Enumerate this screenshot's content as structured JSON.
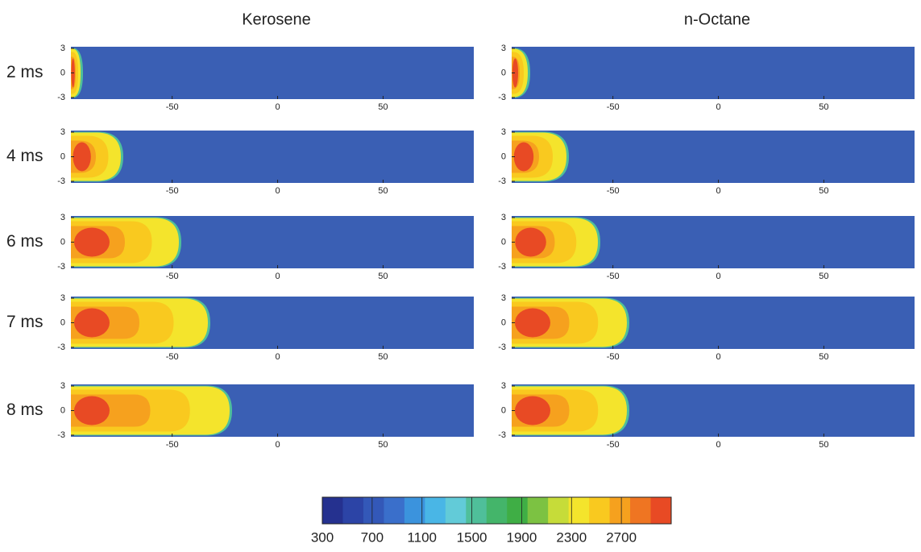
{
  "chart_data": {
    "type": "contour",
    "columns": [
      "Kerosene",
      "n-Octane"
    ],
    "rows": [
      "2 ms",
      "4 ms",
      "6 ms",
      "7 ms",
      "8 ms"
    ],
    "xlim": [
      -98,
      93
    ],
    "xticks": [
      -50,
      0,
      50
    ],
    "ylim": [
      -3.2,
      3.2
    ],
    "yticks": [
      3,
      0,
      -3
    ],
    "background_color": "#3a5fb4",
    "colorbar": {
      "lim": [
        300,
        3100
      ],
      "ticks": [
        300,
        700,
        1100,
        1500,
        1900,
        2300,
        2700
      ],
      "colors": [
        "#25318f",
        "#2c44a6",
        "#3358b8",
        "#3a6fcb",
        "#3b93dd",
        "#49b6e6",
        "#62cbd8",
        "#4fbf9a",
        "#44b56a",
        "#3fae45",
        "#7cc242",
        "#c6dc39",
        "#f4e42c",
        "#f9c91f",
        "#f6a11e",
        "#ef7522",
        "#e84a24"
      ]
    }
  }
}
